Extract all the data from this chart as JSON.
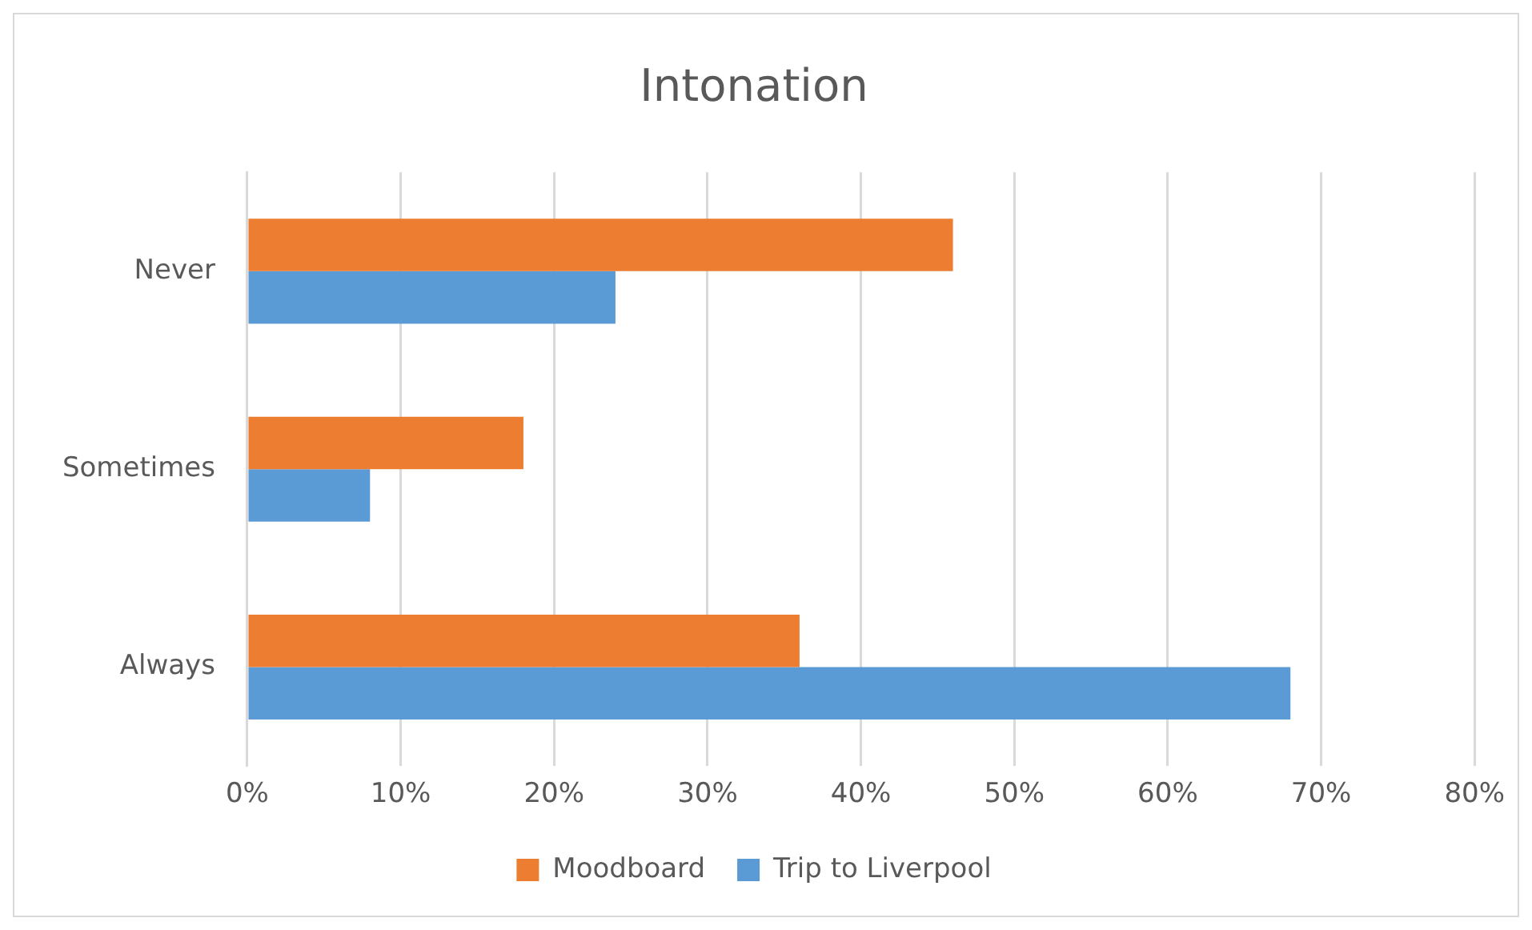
{
  "chart_data": {
    "type": "bar",
    "orientation": "horizontal",
    "title": "Intonation",
    "categories": [
      "Never",
      "Sometimes",
      "Always"
    ],
    "series": [
      {
        "name": "Moodboard",
        "color": "#ed7d31",
        "values": [
          46,
          18,
          36
        ]
      },
      {
        "name": "Trip to Liverpool",
        "color": "#5b9bd5",
        "values": [
          24,
          8,
          68
        ]
      }
    ],
    "xlim": [
      0,
      80
    ],
    "xticks": [
      {
        "value": 0,
        "label": "0%"
      },
      {
        "value": 10,
        "label": "10%"
      },
      {
        "value": 20,
        "label": "20%"
      },
      {
        "value": 30,
        "label": "30%"
      },
      {
        "value": 40,
        "label": "40%"
      },
      {
        "value": 50,
        "label": "50%"
      },
      {
        "value": 60,
        "label": "60%"
      },
      {
        "value": 70,
        "label": "70%"
      },
      {
        "value": 80,
        "label": "80%"
      }
    ],
    "grid": "x",
    "legend": "bottom"
  }
}
